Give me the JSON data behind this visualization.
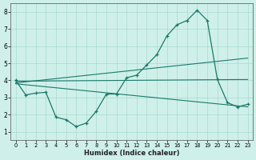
{
  "bg_color": "#cff0ea",
  "grid_color": "#a8d8d0",
  "line_color": "#1a7a6a",
  "xlabel": "Humidex (Indice chaleur)",
  "xlim": [
    -0.5,
    23.5
  ],
  "ylim": [
    0.5,
    8.5
  ],
  "yticks": [
    1,
    2,
    3,
    4,
    5,
    6,
    7,
    8
  ],
  "xticks": [
    0,
    1,
    2,
    3,
    4,
    5,
    6,
    7,
    8,
    9,
    10,
    11,
    12,
    13,
    14,
    15,
    16,
    17,
    18,
    19,
    20,
    21,
    22,
    23
  ],
  "main_x": [
    0,
    1,
    2,
    3,
    4,
    5,
    6,
    7,
    8,
    9,
    10,
    11,
    12,
    13,
    14,
    15,
    16,
    17,
    18,
    19,
    20,
    21,
    22,
    23
  ],
  "main_y": [
    4.0,
    3.15,
    3.25,
    3.3,
    1.85,
    1.7,
    1.3,
    1.5,
    2.2,
    3.2,
    3.2,
    4.15,
    4.3,
    4.9,
    5.5,
    6.6,
    7.25,
    7.5,
    8.1,
    7.5,
    4.05,
    2.7,
    2.45,
    2.6
  ],
  "trend1_x": [
    0,
    23
  ],
  "trend1_y": [
    3.95,
    4.05
  ],
  "trend2_x": [
    0,
    23
  ],
  "trend2_y": [
    3.85,
    5.3
  ],
  "trend3_x": [
    0,
    23
  ],
  "trend3_y": [
    3.8,
    2.45
  ]
}
